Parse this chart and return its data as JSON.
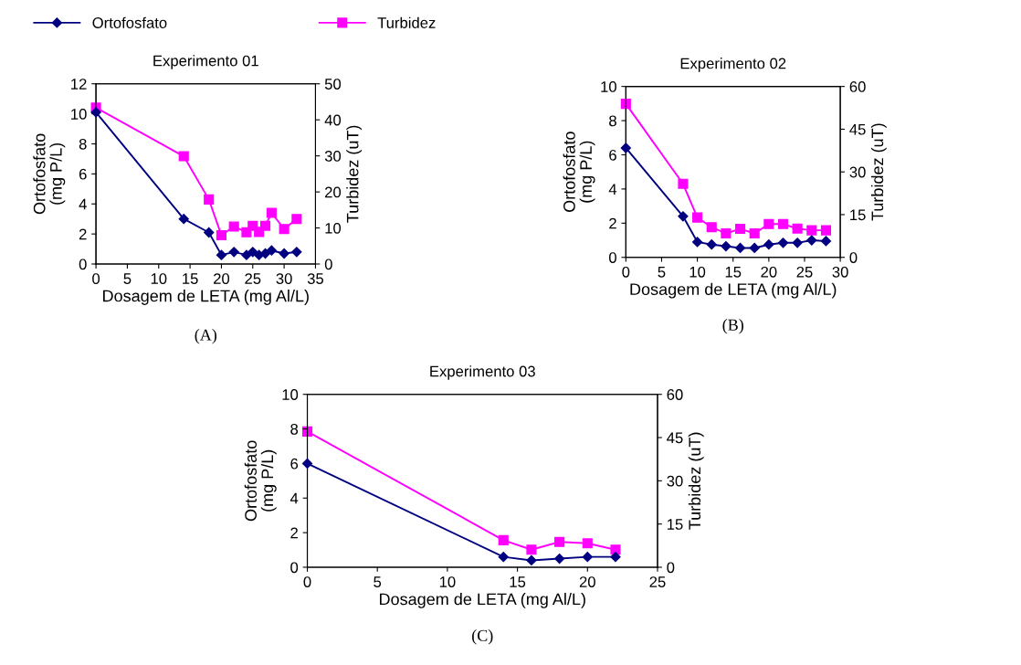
{
  "chart_data": [
    {
      "type": "line",
      "title": "Experimento 01",
      "xlabel": "Dosagem de LETA (mg Al/L)",
      "ylabel": "Ortofosfato\n(mg P/L)",
      "y2label": "Turbidez (uT)",
      "legend": "top",
      "annotations": [
        "(A)"
      ],
      "xlim": [
        0,
        35
      ],
      "xticks": [
        0,
        5,
        10,
        15,
        20,
        25,
        30,
        35
      ],
      "ylim": [
        0,
        12
      ],
      "yticks": [
        0,
        2,
        4,
        6,
        8,
        10,
        12
      ],
      "y2lim": [
        0,
        50
      ],
      "y2ticks": [
        0,
        10,
        20,
        30,
        40,
        50
      ],
      "series": [
        {
          "name": "Ortofosfato",
          "color": "#000080",
          "marker": "diamond",
          "x": [
            0,
            14,
            18,
            20,
            22,
            24,
            25,
            26,
            27,
            28,
            30,
            32
          ],
          "values": [
            10.1,
            3.0,
            2.1,
            0.6,
            0.8,
            0.6,
            0.8,
            0.6,
            0.7,
            0.9,
            0.7,
            0.8
          ]
        },
        {
          "name": "Turbidez",
          "color": "#ff00ff",
          "marker": "square",
          "axis": "y2",
          "x": [
            0,
            14,
            18,
            20,
            22,
            24,
            25,
            26,
            27,
            28,
            30,
            32
          ],
          "values": [
            43.4,
            29.9,
            17.9,
            8.0,
            10.4,
            8.8,
            10.6,
            8.9,
            10.6,
            14.2,
            9.7,
            12.5
          ]
        }
      ]
    },
    {
      "type": "line",
      "title": "Experimento 02",
      "xlabel": "Dosagem de LETA (mg Al/L)",
      "ylabel": "Ortofosfato\n(mg P/L)",
      "y2label": "Turbidez (uT)",
      "annotations": [
        "(B)"
      ],
      "xlim": [
        0,
        30
      ],
      "xticks": [
        0,
        5,
        10,
        15,
        20,
        25,
        30
      ],
      "ylim": [
        0,
        10
      ],
      "yticks": [
        0,
        2,
        4,
        6,
        8,
        10
      ],
      "y2lim": [
        0,
        60
      ],
      "y2ticks": [
        0,
        15,
        30,
        45,
        60
      ],
      "series": [
        {
          "color": "#000080",
          "marker": "diamond",
          "x": [
            0,
            8,
            10,
            12,
            14,
            16,
            18,
            20,
            22,
            24,
            26,
            28
          ],
          "values": [
            6.4,
            2.4,
            0.9,
            0.75,
            0.65,
            0.55,
            0.55,
            0.75,
            0.85,
            0.85,
            1.0,
            0.95
          ]
        },
        {
          "color": "#ff00ff",
          "marker": "square",
          "axis": "y2",
          "x": [
            0,
            8,
            10,
            12,
            14,
            16,
            18,
            20,
            22,
            24,
            26,
            28
          ],
          "values": [
            53.9,
            25.8,
            14.0,
            10.6,
            8.4,
            10.0,
            8.4,
            11.7,
            11.7,
            10.1,
            9.5,
            9.5
          ]
        }
      ]
    },
    {
      "type": "line",
      "title": "Experimento 03",
      "xlabel": "Dosagem de LETA (mg Al/L)",
      "ylabel": "Ortofosfato\n(mg P/L)",
      "y2label": "Turbidez (uT)",
      "annotations": [
        "(C)"
      ],
      "xlim": [
        0,
        25
      ],
      "xticks": [
        0,
        5,
        10,
        15,
        20,
        25
      ],
      "ylim": [
        0,
        10
      ],
      "yticks": [
        0,
        2,
        4,
        6,
        8,
        10
      ],
      "y2lim": [
        0,
        60
      ],
      "y2ticks": [
        0,
        15,
        30,
        45,
        60
      ],
      "series": [
        {
          "color": "#000080",
          "marker": "diamond",
          "x": [
            0,
            14,
            16,
            18,
            20,
            22
          ],
          "values": [
            6.0,
            0.6,
            0.4,
            0.5,
            0.6,
            0.6
          ]
        },
        {
          "color": "#ff00ff",
          "marker": "square",
          "axis": "y2",
          "x": [
            0,
            14,
            16,
            18,
            20,
            22
          ],
          "values": [
            47.1,
            9.4,
            6.1,
            8.8,
            8.3,
            6.1
          ]
        }
      ]
    }
  ]
}
